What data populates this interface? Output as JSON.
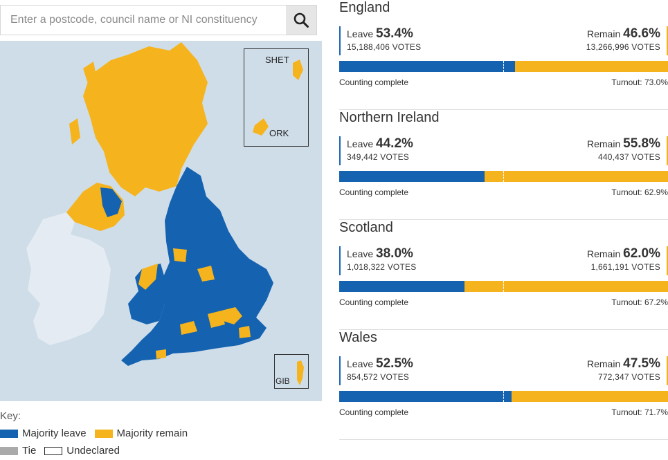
{
  "search": {
    "placeholder": "Enter a postcode, council name or NI constituency",
    "button_icon": "search-icon"
  },
  "map": {
    "insets": {
      "shetland": "SHET",
      "orkney": "ORK",
      "gibraltar": "GIB"
    },
    "colors": {
      "sea": "#cfdde9",
      "leave": "#1462b0",
      "remain": "#f5b41d",
      "ireland": "#e4ebf2"
    }
  },
  "key": {
    "title": "Key:",
    "items": [
      {
        "label": "Majority leave",
        "color": "#1462b0"
      },
      {
        "label": "Majority remain",
        "color": "#f5b41d"
      },
      {
        "label": "Tie",
        "color": "#aaaaaa"
      },
      {
        "label": "Undeclared",
        "color": "#ffffff"
      }
    ]
  },
  "regions": [
    {
      "name": "England",
      "leave_label": "Leave",
      "leave_pct": "53.4%",
      "leave_votes": "15,188,406 VOTES",
      "remain_label": "Remain",
      "remain_pct": "46.6%",
      "remain_votes": "13,266,996 VOTES",
      "leave_share": 53.4,
      "status": "Counting complete",
      "turnout": "Turnout: 73.0%"
    },
    {
      "name": "Northern Ireland",
      "leave_label": "Leave",
      "leave_pct": "44.2%",
      "leave_votes": "349,442 VOTES",
      "remain_label": "Remain",
      "remain_pct": "55.8%",
      "remain_votes": "440,437 VOTES",
      "leave_share": 44.2,
      "status": "Counting complete",
      "turnout": "Turnout: 62.9%"
    },
    {
      "name": "Scotland",
      "leave_label": "Leave",
      "leave_pct": "38.0%",
      "leave_votes": "1,018,322 VOTES",
      "remain_label": "Remain",
      "remain_pct": "62.0%",
      "remain_votes": "1,661,191 VOTES",
      "leave_share": 38.0,
      "status": "Counting complete",
      "turnout": "Turnout: 67.2%"
    },
    {
      "name": "Wales",
      "leave_label": "Leave",
      "leave_pct": "52.5%",
      "leave_votes": "854,572 VOTES",
      "remain_label": "Remain",
      "remain_pct": "47.5%",
      "remain_votes": "772,347 VOTES",
      "leave_share": 52.5,
      "status": "Counting complete",
      "turnout": "Turnout: 71.7%"
    }
  ]
}
